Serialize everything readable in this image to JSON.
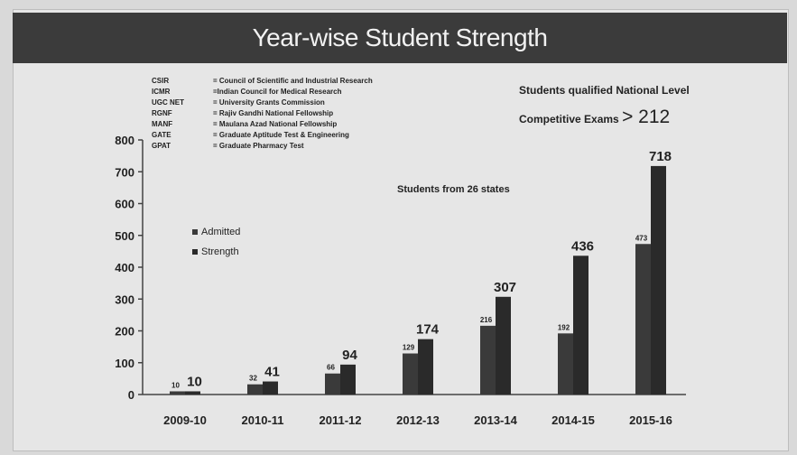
{
  "slide": {
    "title": "Year-wise Student Strength",
    "abbreviations": [
      {
        "abbr": "CSIR",
        "text": "= Council of Scientific and Industrial Research"
      },
      {
        "abbr": "ICMR",
        "text": "=Indian Council for Medical Research"
      },
      {
        "abbr": "UGC NET",
        "text": "= University Grants Commission"
      },
      {
        "abbr": "RGNF",
        "text": "= Rajiv Gandhi National Fellowship"
      },
      {
        "abbr": "MANF",
        "text": "= Maulana Azad National Fellowship"
      },
      {
        "abbr": "GATE",
        "text": "= Graduate Aptitude Test & Engineering"
      },
      {
        "abbr": "GPAT",
        "text": "= Graduate Pharmacy Test"
      }
    ],
    "note_line1": "Students qualified National Level",
    "note_line2": "Competitive Exams",
    "note_value": "> 212",
    "states_note": "Students from 26 states"
  },
  "chart_data": {
    "type": "bar",
    "categories": [
      "2009-10",
      "2010-11",
      "2011-12",
      "2012-13",
      "2013-14",
      "2014-15",
      "2015-16"
    ],
    "series": [
      {
        "name": "Admitted",
        "values": [
          10,
          32,
          66,
          129,
          216,
          192,
          473
        ],
        "labels": [
          "10",
          "32",
          "66",
          "129",
          "216",
          "192",
          "473"
        ],
        "color": "#3a3a3a"
      },
      {
        "name": "Strength",
        "values": [
          10,
          41,
          94,
          174,
          307,
          436,
          718
        ],
        "labels": [
          "10",
          "41",
          "94",
          "174",
          "307",
          "436",
          "718"
        ],
        "color": "#2a2a2a"
      }
    ],
    "ylim": [
      0,
      800
    ],
    "yticks": [
      0,
      100,
      200,
      300,
      400,
      500,
      600,
      700,
      800
    ],
    "legend": "left",
    "grid": false
  }
}
